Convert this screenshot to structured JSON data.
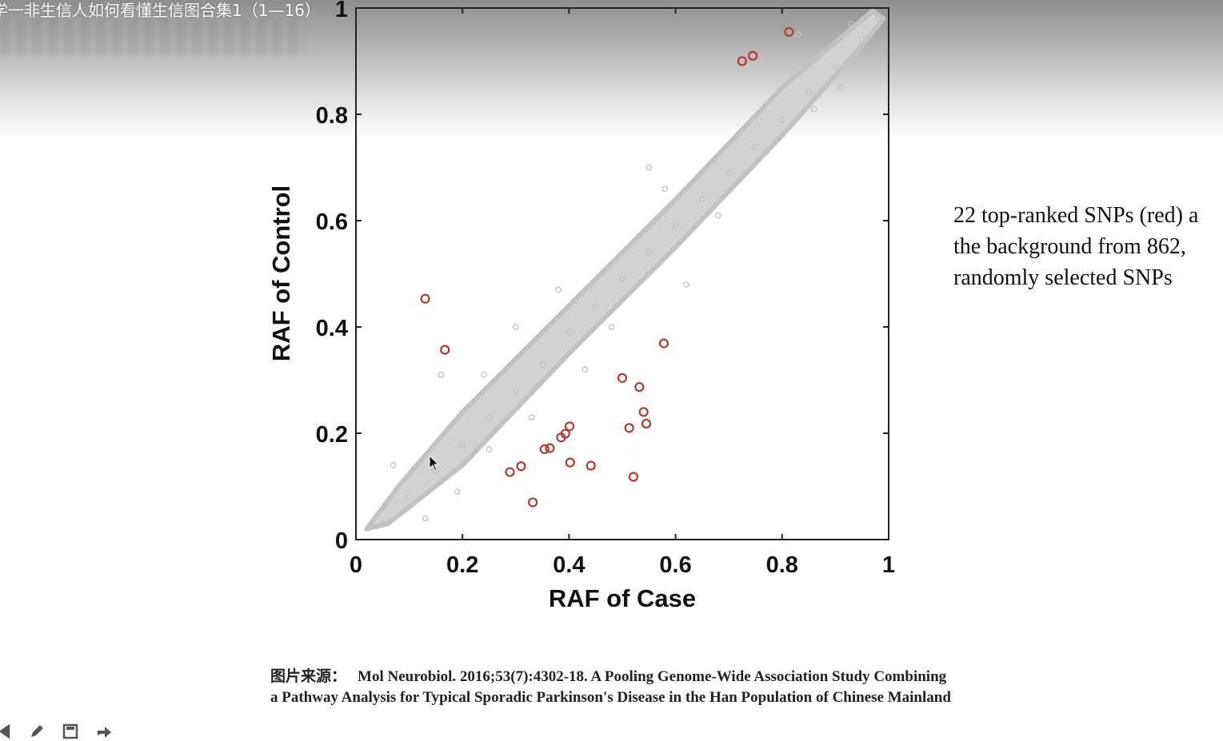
{
  "video": {
    "title": "学一非生信人如何看懂生信图合集1（1—16）"
  },
  "side_note": {
    "lines": [
      "22 top-ranked SNPs (red) a",
      "the background from 862,",
      "randomly selected SNPs"
    ]
  },
  "caption": {
    "lead": "图片来源：",
    "line1": "Mol Neurobiol. 2016;53(7):4302-18. A Pooling Genome-Wide Association Study Combining",
    "line2": "a Pathway Analysis for Typical Sporadic Parkinson's Disease in the Han Population of Chinese Mainland"
  },
  "toolbar": {
    "icons": [
      "prev-icon",
      "pen-icon",
      "save-icon",
      "share-icon"
    ]
  },
  "colors": {
    "background_points": "#c4c4c4",
    "top_snps": "#b23a32",
    "axis": "#222222"
  },
  "chart_data": {
    "type": "scatter",
    "title": "",
    "xlabel": "RAF of Case",
    "ylabel": "RAF of Control",
    "xlim": [
      0,
      1
    ],
    "ylim": [
      0,
      1
    ],
    "xticks": [
      "0",
      "0.2",
      "0.4",
      "0.6",
      "0.8",
      "1"
    ],
    "yticks": [
      "0",
      "0.2",
      "0.4",
      "0.6",
      "0.8",
      "1"
    ],
    "grid": false,
    "legend": "none",
    "series": [
      {
        "role": "background",
        "color": "#c4c4c4",
        "marker": "circle-open",
        "points": [
          [
            0.05,
            0.03
          ],
          [
            0.1,
            0.08
          ],
          [
            0.15,
            0.13
          ],
          [
            0.2,
            0.18
          ],
          [
            0.25,
            0.23
          ],
          [
            0.3,
            0.28
          ],
          [
            0.35,
            0.33
          ],
          [
            0.4,
            0.39
          ],
          [
            0.45,
            0.44
          ],
          [
            0.5,
            0.49
          ],
          [
            0.55,
            0.54
          ],
          [
            0.6,
            0.59
          ],
          [
            0.65,
            0.64
          ],
          [
            0.7,
            0.69
          ],
          [
            0.75,
            0.74
          ],
          [
            0.8,
            0.79
          ],
          [
            0.85,
            0.84
          ],
          [
            0.9,
            0.89
          ],
          [
            0.95,
            0.94
          ],
          [
            0.98,
            0.98
          ],
          [
            0.16,
            0.31
          ],
          [
            0.24,
            0.31
          ],
          [
            0.3,
            0.4
          ],
          [
            0.43,
            0.32
          ],
          [
            0.55,
            0.7
          ],
          [
            0.73,
            0.91
          ],
          [
            0.83,
            0.95
          ],
          [
            0.91,
            0.85
          ],
          [
            0.19,
            0.09
          ],
          [
            0.33,
            0.23
          ],
          [
            0.48,
            0.4
          ],
          [
            0.62,
            0.48
          ],
          [
            0.07,
            0.14
          ],
          [
            0.13,
            0.04
          ],
          [
            0.86,
            0.81
          ],
          [
            0.68,
            0.61
          ],
          [
            0.58,
            0.66
          ],
          [
            0.38,
            0.47
          ],
          [
            0.25,
            0.17
          ],
          [
            0.93,
            0.97
          ]
        ]
      },
      {
        "name": "22 top-ranked SNPs (red)",
        "role": "top",
        "color": "#b23a32",
        "marker": "circle-open",
        "points": [
          [
            0.813,
            0.955
          ],
          [
            0.725,
            0.9
          ],
          [
            0.745,
            0.91
          ],
          [
            0.13,
            0.453
          ],
          [
            0.167,
            0.357
          ],
          [
            0.578,
            0.369
          ],
          [
            0.5,
            0.304
          ],
          [
            0.532,
            0.287
          ],
          [
            0.54,
            0.24
          ],
          [
            0.545,
            0.218
          ],
          [
            0.513,
            0.21
          ],
          [
            0.401,
            0.213
          ],
          [
            0.393,
            0.199
          ],
          [
            0.385,
            0.192
          ],
          [
            0.364,
            0.172
          ],
          [
            0.354,
            0.17
          ],
          [
            0.402,
            0.145
          ],
          [
            0.441,
            0.139
          ],
          [
            0.31,
            0.138
          ],
          [
            0.289,
            0.127
          ],
          [
            0.521,
            0.118
          ],
          [
            0.332,
            0.07
          ]
        ]
      }
    ]
  }
}
